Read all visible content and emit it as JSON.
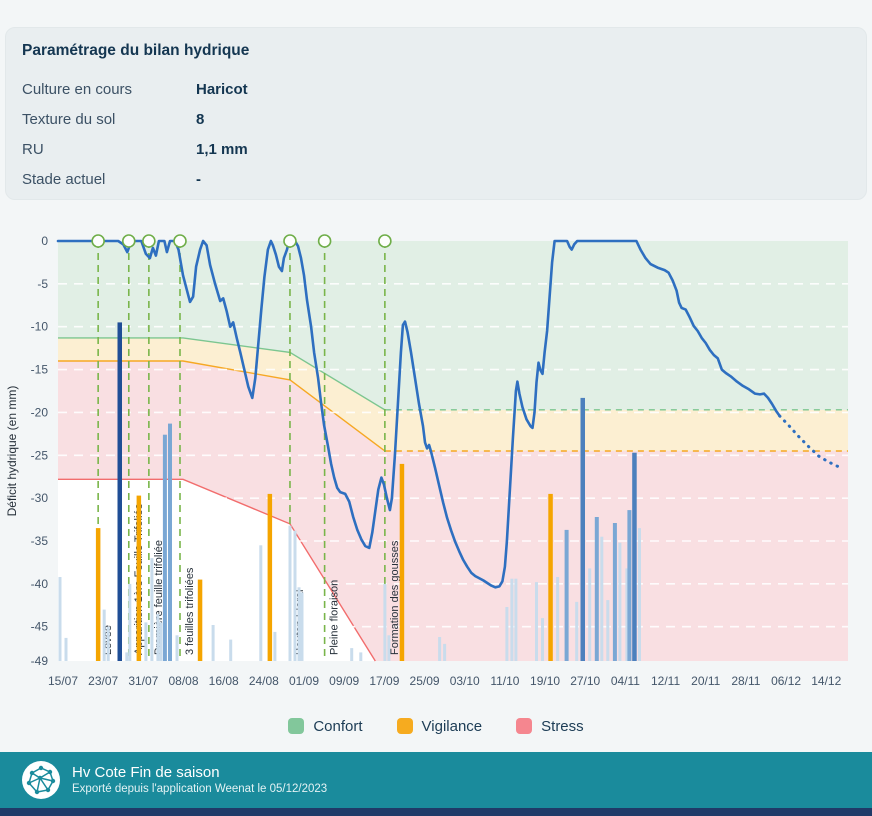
{
  "panel": {
    "title": "Paramétrage du bilan hydrique",
    "rows": [
      {
        "label": "Culture en cours",
        "value": "Haricot"
      },
      {
        "label": "Texture du sol",
        "value": "8"
      },
      {
        "label": "RU",
        "value": "1,1 mm"
      },
      {
        "label": "Stade actuel",
        "value": "-"
      }
    ]
  },
  "chart_data": {
    "type": "line",
    "ylabel": "Déficit hydrique (en mm)",
    "ylim": [
      -49,
      0
    ],
    "yticks": [
      0,
      -5,
      -10,
      -15,
      -20,
      -25,
      -30,
      -35,
      -40,
      -45,
      -49
    ],
    "x_unit": "days since 15/07",
    "xticks": [
      "15/07",
      "23/07",
      "31/07",
      "08/08",
      "16/08",
      "24/08",
      "01/09",
      "09/09",
      "17/09",
      "25/09",
      "03/10",
      "11/10",
      "19/10",
      "27/10",
      "04/11",
      "12/11",
      "20/11",
      "28/11",
      "06/12",
      "14/12"
    ],
    "xtick_step_days": 8,
    "grid": "white dashed horizontal",
    "legend_position": "bottom-center",
    "legend": [
      {
        "label": "Confort",
        "color": "#82c79b"
      },
      {
        "label": "Vigilance",
        "color": "#f6ab1f"
      },
      {
        "label": "Stress",
        "color": "#f5868f"
      }
    ],
    "colors": {
      "fill_confort": "#e1efe5",
      "fill_vigilance": "#fcefd2",
      "fill_stress": "#f9dfe2",
      "line_confort": "#7cc690",
      "line_vigilance": "#f6a823",
      "line_stress": "#f26d6d",
      "line_main": "#2e6fc0",
      "stage": "#79b54a",
      "bar_light": "#c9dcec",
      "bar_medium": "#7aa7d4",
      "bar_strong": "#4c80bd",
      "bar_dark": "#1f4e96",
      "bar_orange": "#f5a500",
      "tick_text": "#44566a",
      "stage_text": "#26303a"
    },
    "zones": {
      "confort_bottom": {
        "solid": [
          [
            -1,
            -11.3
          ],
          [
            23.9,
            -11.3
          ],
          [
            45.2,
            -13
          ],
          [
            64.1,
            -19.7
          ]
        ],
        "dashed_level": -19.7
      },
      "vigilance_bottom": {
        "solid": [
          [
            -1,
            -14
          ],
          [
            23.9,
            -14
          ],
          [
            45.2,
            -16.2
          ],
          [
            64.1,
            -24.5
          ]
        ],
        "dashed_level": -24.5
      },
      "stress_bottom": {
        "solid": [
          [
            -1,
            -27.8
          ],
          [
            23.9,
            -27.8
          ],
          [
            45.2,
            -33
          ],
          [
            62.2,
            -49
          ]
        ]
      }
    },
    "stages": [
      {
        "d": 7.0,
        "label": "Levée"
      },
      {
        "d": 13.1,
        "label": "Apparition 1ère Feuille Trifoliée"
      },
      {
        "d": 17.1,
        "label": "Première feuille trifoliée"
      },
      {
        "d": 23.3,
        "label": "3 feuilles trifoliées"
      },
      {
        "d": 45.2,
        "label": "Bouton Floral"
      },
      {
        "d": 52.1,
        "label": "Pleine floraison"
      },
      {
        "d": 64.1,
        "label": "Formation des gousses"
      }
    ],
    "line": {
      "points": [
        [
          -1,
          0
        ],
        [
          11,
          0
        ],
        [
          12,
          -0.4
        ],
        [
          12.8,
          -1.3
        ],
        [
          13.6,
          0
        ],
        [
          15.6,
          0
        ],
        [
          16.5,
          -1.5
        ],
        [
          17.3,
          -2
        ],
        [
          17.9,
          -0.8
        ],
        [
          18.5,
          -1.7
        ],
        [
          19.1,
          0
        ],
        [
          20.2,
          0
        ],
        [
          20.7,
          -1.3
        ],
        [
          21.3,
          0
        ],
        [
          22.3,
          0
        ],
        [
          23,
          -1
        ],
        [
          23.9,
          -4
        ],
        [
          25.3,
          -7.1
        ],
        [
          25.9,
          -6.5
        ],
        [
          26.5,
          -3
        ],
        [
          27.3,
          -1
        ],
        [
          27.9,
          0
        ],
        [
          28.6,
          -0.5
        ],
        [
          29.3,
          -2.8
        ],
        [
          30.3,
          -5
        ],
        [
          31.3,
          -7
        ],
        [
          31.9,
          -6.7
        ],
        [
          32.6,
          -8.2
        ],
        [
          33.3,
          -10
        ],
        [
          33.9,
          -9.5
        ],
        [
          34.6,
          -11.3
        ],
        [
          35.3,
          -13
        ],
        [
          36.1,
          -15
        ],
        [
          36.9,
          -17
        ],
        [
          37.7,
          -18.3
        ],
        [
          38.3,
          -16
        ],
        [
          38.9,
          -12
        ],
        [
          39.5,
          -8
        ],
        [
          40.1,
          -4.2
        ],
        [
          40.8,
          -1
        ],
        [
          41.4,
          0
        ],
        [
          41.8,
          -0.5
        ],
        [
          42.4,
          -1.6
        ],
        [
          43,
          -3
        ],
        [
          43.6,
          -3.5
        ],
        [
          44,
          -2
        ],
        [
          44.6,
          -1
        ],
        [
          45,
          0
        ],
        [
          45.6,
          -0.3
        ],
        [
          46.2,
          0
        ],
        [
          46.8,
          -0.6
        ],
        [
          47.4,
          -2
        ],
        [
          48,
          -4
        ],
        [
          48.6,
          -6.9
        ],
        [
          49.4,
          -10
        ],
        [
          50,
          -13
        ],
        [
          50.8,
          -16
        ],
        [
          51.4,
          -18.9
        ],
        [
          52,
          -21.5
        ],
        [
          52.8,
          -24
        ],
        [
          53.4,
          -26
        ],
        [
          54,
          -27.6
        ],
        [
          54.6,
          -28.8
        ],
        [
          55.2,
          -29.3
        ],
        [
          56.2,
          -29.5
        ],
        [
          57,
          -30.4
        ],
        [
          57.8,
          -32.2
        ],
        [
          58.6,
          -33.7
        ],
        [
          59.4,
          -34.8
        ],
        [
          60.2,
          -35.6
        ],
        [
          61,
          -35.8
        ],
        [
          61.6,
          -34
        ],
        [
          62.2,
          -31.5
        ],
        [
          62.8,
          -29
        ],
        [
          63.4,
          -27.6
        ],
        [
          63.9,
          -28.4
        ],
        [
          64.5,
          -30
        ],
        [
          65.1,
          -31.4
        ],
        [
          65.5,
          -30
        ],
        [
          66.1,
          -25
        ],
        [
          66.7,
          -19
        ],
        [
          67.3,
          -13
        ],
        [
          67.7,
          -9.8
        ],
        [
          68.1,
          -9.4
        ],
        [
          68.6,
          -10.6
        ],
        [
          69.3,
          -13
        ],
        [
          70.1,
          -16
        ],
        [
          70.9,
          -19
        ],
        [
          71.7,
          -21.6
        ],
        [
          72.1,
          -23.5
        ],
        [
          72.5,
          -24.2
        ],
        [
          72.9,
          -23.8
        ],
        [
          73.3,
          -24.6
        ],
        [
          74.1,
          -26.5
        ],
        [
          74.9,
          -28.5
        ],
        [
          75.7,
          -30.5
        ],
        [
          76.5,
          -32.3
        ],
        [
          77.3,
          -33.8
        ],
        [
          78.1,
          -35.1
        ],
        [
          78.9,
          -36.2
        ],
        [
          79.7,
          -37.2
        ],
        [
          80.5,
          -38
        ],
        [
          81.3,
          -38.7
        ],
        [
          82.1,
          -39.1
        ],
        [
          83.7,
          -39.6
        ],
        [
          85.3,
          -40.2
        ],
        [
          86.1,
          -40.4
        ],
        [
          86.9,
          -40.3
        ],
        [
          87.5,
          -39.7
        ],
        [
          88,
          -38
        ],
        [
          88.4,
          -35
        ],
        [
          89,
          -29
        ],
        [
          89.6,
          -23
        ],
        [
          90.2,
          -17.5
        ],
        [
          90.5,
          -16.4
        ],
        [
          90.9,
          -17.8
        ],
        [
          91.5,
          -19.4
        ],
        [
          92.3,
          -20.8
        ],
        [
          93.1,
          -21.6
        ],
        [
          93.5,
          -21.8
        ],
        [
          93.9,
          -20
        ],
        [
          94.3,
          -16.5
        ],
        [
          94.7,
          -14.2
        ],
        [
          95.1,
          -15.1
        ],
        [
          95.5,
          -15.5
        ],
        [
          95.9,
          -13
        ],
        [
          96.4,
          -10.5
        ],
        [
          96.9,
          -6.5
        ],
        [
          97.4,
          -2.5
        ],
        [
          97.9,
          0
        ],
        [
          100.4,
          0
        ],
        [
          100.9,
          -0.7
        ],
        [
          101.3,
          -1
        ],
        [
          101.8,
          -0.4
        ],
        [
          102.4,
          0
        ],
        [
          114.2,
          0
        ],
        [
          115,
          -1
        ],
        [
          116,
          -2
        ],
        [
          117,
          -2.7
        ],
        [
          118.4,
          -3.1
        ],
        [
          119.8,
          -3.4
        ],
        [
          120.6,
          -3.7
        ],
        [
          121.4,
          -4.6
        ],
        [
          122.2,
          -5.8
        ],
        [
          122.7,
          -7.2
        ],
        [
          123.2,
          -7.8
        ],
        [
          124,
          -8
        ],
        [
          124.8,
          -8.9
        ],
        [
          125.6,
          -9.9
        ],
        [
          126.4,
          -10.5
        ],
        [
          127.2,
          -11.3
        ],
        [
          128,
          -11.9
        ],
        [
          128.8,
          -12.7
        ],
        [
          129.6,
          -13.3
        ],
        [
          130.4,
          -13.7
        ],
        [
          131.2,
          -15
        ],
        [
          132,
          -15.4
        ],
        [
          133,
          -15.8
        ],
        [
          134.2,
          -16.4
        ],
        [
          135.4,
          -16.9
        ],
        [
          136.6,
          -17.3
        ],
        [
          137.8,
          -17.8
        ],
        [
          138.8,
          -17.9
        ],
        [
          139.6,
          -17.8
        ],
        [
          140.4,
          -18.3
        ],
        [
          141.2,
          -19
        ],
        [
          142,
          -19.8
        ],
        [
          142.7,
          -20.4
        ]
      ],
      "forecast": [
        [
          142.7,
          -20.4
        ],
        [
          144.5,
          -21.5
        ],
        [
          146.5,
          -22.8
        ],
        [
          148.5,
          -24
        ],
        [
          150.5,
          -25.1
        ],
        [
          152.5,
          -25.8
        ],
        [
          155,
          -26.5
        ]
      ]
    },
    "bars": [
      [
        -0.6,
        -39.2,
        "light"
      ],
      [
        0.6,
        -46.3,
        "light"
      ],
      [
        7,
        -33.5,
        "orange"
      ],
      [
        8.2,
        -43,
        "light"
      ],
      [
        9,
        -45,
        "light"
      ],
      [
        11.3,
        -9.5,
        "dark"
      ],
      [
        12.7,
        -48,
        "light"
      ],
      [
        13.3,
        -40,
        "light"
      ],
      [
        15.1,
        -29.7,
        "orange"
      ],
      [
        16.5,
        -44.5,
        "light"
      ],
      [
        17.7,
        -37,
        "light"
      ],
      [
        18.9,
        -43.5,
        "light"
      ],
      [
        19.5,
        -44.5,
        "light"
      ],
      [
        20.3,
        -22.6,
        "medium"
      ],
      [
        21.3,
        -21.3,
        "medium"
      ],
      [
        22.7,
        -46,
        "light"
      ],
      [
        27.3,
        -39.5,
        "orange"
      ],
      [
        29.9,
        -44.8,
        "light"
      ],
      [
        33.4,
        -46.5,
        "light"
      ],
      [
        39.4,
        -35.5,
        "light"
      ],
      [
        41.2,
        -29.5,
        "orange"
      ],
      [
        42.2,
        -45.6,
        "light"
      ],
      [
        45.2,
        -33.2,
        "light"
      ],
      [
        46.2,
        -33.8,
        "light"
      ],
      [
        47,
        -40.4,
        "light"
      ],
      [
        47.6,
        -41,
        "light"
      ],
      [
        57.5,
        -47.5,
        "light"
      ],
      [
        59.3,
        -48,
        "light"
      ],
      [
        64.1,
        -40,
        "light"
      ],
      [
        64.9,
        -46,
        "light"
      ],
      [
        67.5,
        -26,
        "orange"
      ],
      [
        75,
        -46.2,
        "light"
      ],
      [
        76,
        -47,
        "light"
      ],
      [
        88.4,
        -42.7,
        "light"
      ],
      [
        89.4,
        -39.4,
        "light"
      ],
      [
        90.2,
        -39.4,
        "light"
      ],
      [
        94.3,
        -39.8,
        "light"
      ],
      [
        95.5,
        -44,
        "light"
      ],
      [
        97.1,
        -29.5,
        "orange"
      ],
      [
        98.5,
        -39.2,
        "light"
      ],
      [
        100.3,
        -33.7,
        "medium"
      ],
      [
        102.3,
        -42.1,
        "light"
      ],
      [
        103.5,
        -18.3,
        "strong"
      ],
      [
        104.9,
        -38.2,
        "light"
      ],
      [
        106.3,
        -32.2,
        "medium"
      ],
      [
        107.3,
        -34.5,
        "light"
      ],
      [
        108.5,
        -41.9,
        "light"
      ],
      [
        109.9,
        -32.9,
        "medium"
      ],
      [
        110.9,
        -35.2,
        "light"
      ],
      [
        112.3,
        -38.2,
        "light"
      ],
      [
        112.8,
        -31.4,
        "medium"
      ],
      [
        113.8,
        -24.7,
        "strong"
      ],
      [
        114.8,
        -33.5,
        "light"
      ]
    ]
  },
  "footer": {
    "title": "Hv Cote Fin de saison",
    "subtitle": "Exporté depuis l'application Weenat le 05/12/2023"
  }
}
